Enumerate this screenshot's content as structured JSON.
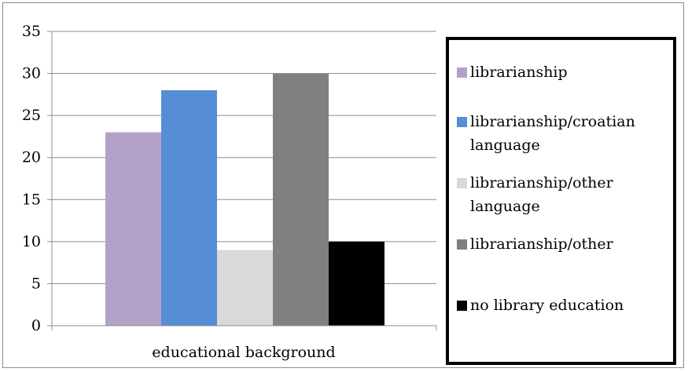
{
  "chart_data": {
    "type": "bar",
    "categories": [
      "educational background"
    ],
    "series": [
      {
        "name": "librarianship",
        "values": [
          23
        ],
        "color": "#b3a2c7"
      },
      {
        "name": "librarianship/croatian language",
        "values": [
          28
        ],
        "color": "#558ed5"
      },
      {
        "name": "librarianship/other language",
        "values": [
          9
        ],
        "color": "#d9d9d9"
      },
      {
        "name": "librarianship/other",
        "values": [
          30
        ],
        "color": "#808080"
      },
      {
        "name": "no library education",
        "values": [
          10
        ],
        "color": "#000000"
      }
    ],
    "title": "",
    "xlabel": "",
    "ylabel": "",
    "ylim": [
      0,
      35
    ],
    "yticks": [
      "0",
      "5",
      "10",
      "15",
      "20",
      "25",
      "30",
      "35"
    ],
    "grid": true,
    "legend_position": "right"
  }
}
